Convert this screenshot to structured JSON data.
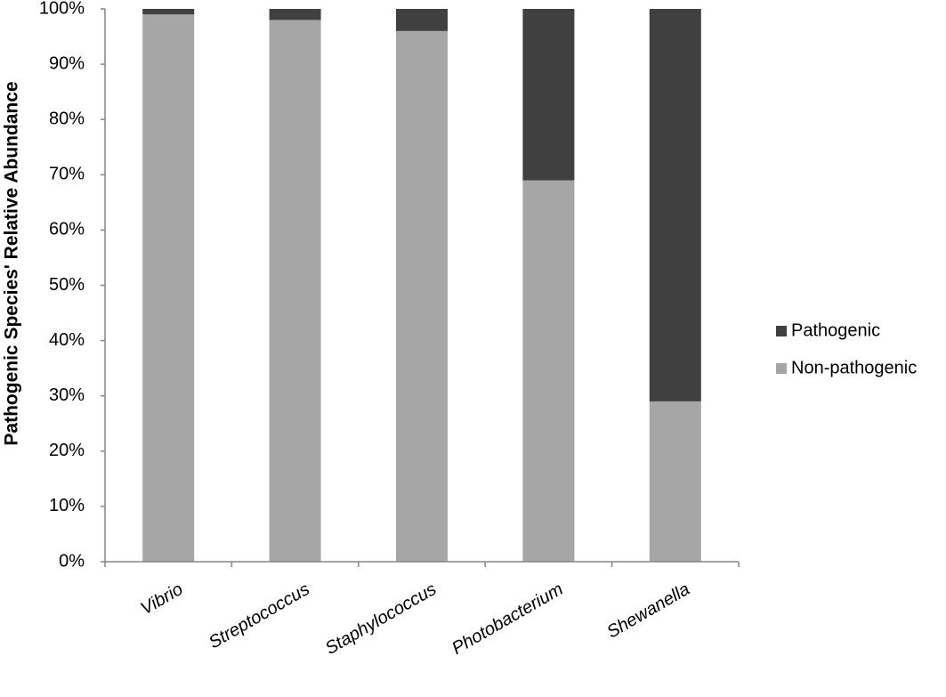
{
  "chart_data": {
    "type": "stacked_bar",
    "y_label": "Pathogenic Species' Relative Abundance",
    "categories": [
      "Vibrio",
      "Streptococcus",
      "Staphylococcus",
      "Photobacterium",
      "Shewanella"
    ],
    "series": [
      {
        "name": "Non-pathogenic",
        "color": "#a6a6a6",
        "values": [
          99,
          98,
          96,
          69,
          29
        ]
      },
      {
        "name": "Pathogenic",
        "color": "#404040",
        "values": [
          1,
          2,
          4,
          31,
          71
        ]
      }
    ],
    "ylim": [
      0,
      100
    ],
    "yticks": [
      {
        "value": 0,
        "label": "0%"
      },
      {
        "value": 10,
        "label": "10%"
      },
      {
        "value": 20,
        "label": "20%"
      },
      {
        "value": 30,
        "label": "30%"
      },
      {
        "value": 40,
        "label": "40%"
      },
      {
        "value": 50,
        "label": "50%"
      },
      {
        "value": 60,
        "label": "60%"
      },
      {
        "value": 70,
        "label": "70%"
      },
      {
        "value": 80,
        "label": "80%"
      },
      {
        "value": 90,
        "label": "90%"
      },
      {
        "value": 100,
        "label": "100%"
      }
    ],
    "grid": false,
    "legend": "right"
  }
}
